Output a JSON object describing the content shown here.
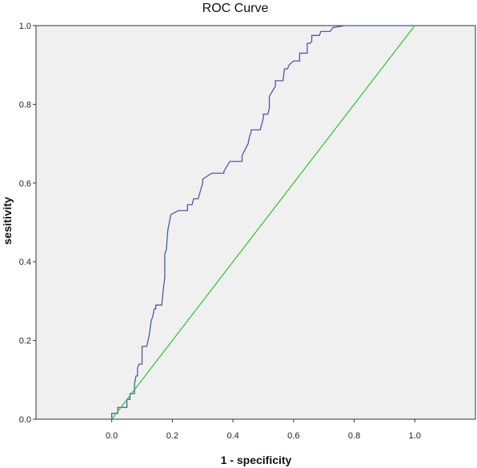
{
  "chart_data": {
    "type": "line",
    "title": "ROC Curve",
    "xlabel": "1 - specificity",
    "ylabel": "sesitivity",
    "xlim": [
      -0.25,
      1.2
    ],
    "ylim": [
      0,
      1
    ],
    "x_ticks": [
      0.0,
      0.2,
      0.4,
      0.6,
      0.8,
      1.0
    ],
    "x_tick_labels": [
      "0.0",
      "0.2",
      "0.4",
      "0.6",
      "0.8",
      "1.0"
    ],
    "y_ticks": [
      0.0,
      0.2,
      0.4,
      0.6,
      0.8,
      1.0
    ],
    "y_tick_labels": [
      "0.0",
      "0.2",
      "0.4",
      "0.6",
      "0.8",
      "1.0"
    ],
    "grid": false,
    "legend": "none",
    "series": [
      {
        "color": "#4b5aa8",
        "x": [
          0.0,
          0.0,
          0.02,
          0.02,
          0.05,
          0.05,
          0.06,
          0.06,
          0.075,
          0.075,
          0.08,
          0.085,
          0.085,
          0.09,
          0.1,
          0.1,
          0.115,
          0.12,
          0.125,
          0.13,
          0.135,
          0.14,
          0.145,
          0.145,
          0.165,
          0.17,
          0.175,
          0.175,
          0.18,
          0.185,
          0.195,
          0.22,
          0.25,
          0.25,
          0.265,
          0.27,
          0.285,
          0.3,
          0.3,
          0.33,
          0.37,
          0.37,
          0.39,
          0.43,
          0.43,
          0.45,
          0.455,
          0.46,
          0.46,
          0.49,
          0.5,
          0.5,
          0.515,
          0.52,
          0.52,
          0.535,
          0.54,
          0.54,
          0.565,
          0.57,
          0.58,
          0.585,
          0.6,
          0.62,
          0.62,
          0.645,
          0.645,
          0.655,
          0.66,
          0.66,
          0.685,
          0.69,
          0.72,
          0.73,
          0.77,
          1.0
        ],
        "y": [
          0.0,
          0.015,
          0.015,
          0.03,
          0.03,
          0.05,
          0.05,
          0.065,
          0.065,
          0.09,
          0.11,
          0.11,
          0.13,
          0.14,
          0.14,
          0.185,
          0.185,
          0.2,
          0.22,
          0.25,
          0.26,
          0.28,
          0.28,
          0.29,
          0.29,
          0.33,
          0.36,
          0.42,
          0.43,
          0.48,
          0.52,
          0.53,
          0.53,
          0.545,
          0.545,
          0.56,
          0.56,
          0.6,
          0.61,
          0.625,
          0.625,
          0.63,
          0.655,
          0.655,
          0.67,
          0.7,
          0.72,
          0.73,
          0.735,
          0.735,
          0.765,
          0.775,
          0.775,
          0.79,
          0.82,
          0.84,
          0.845,
          0.86,
          0.86,
          0.89,
          0.89,
          0.9,
          0.91,
          0.91,
          0.93,
          0.93,
          0.955,
          0.955,
          0.96,
          0.975,
          0.975,
          0.985,
          0.985,
          0.995,
          1.0,
          1.0
        ]
      },
      {
        "color": "#3cc63c",
        "x": [
          0.0,
          1.0
        ],
        "y": [
          0.0,
          1.0
        ]
      }
    ]
  }
}
